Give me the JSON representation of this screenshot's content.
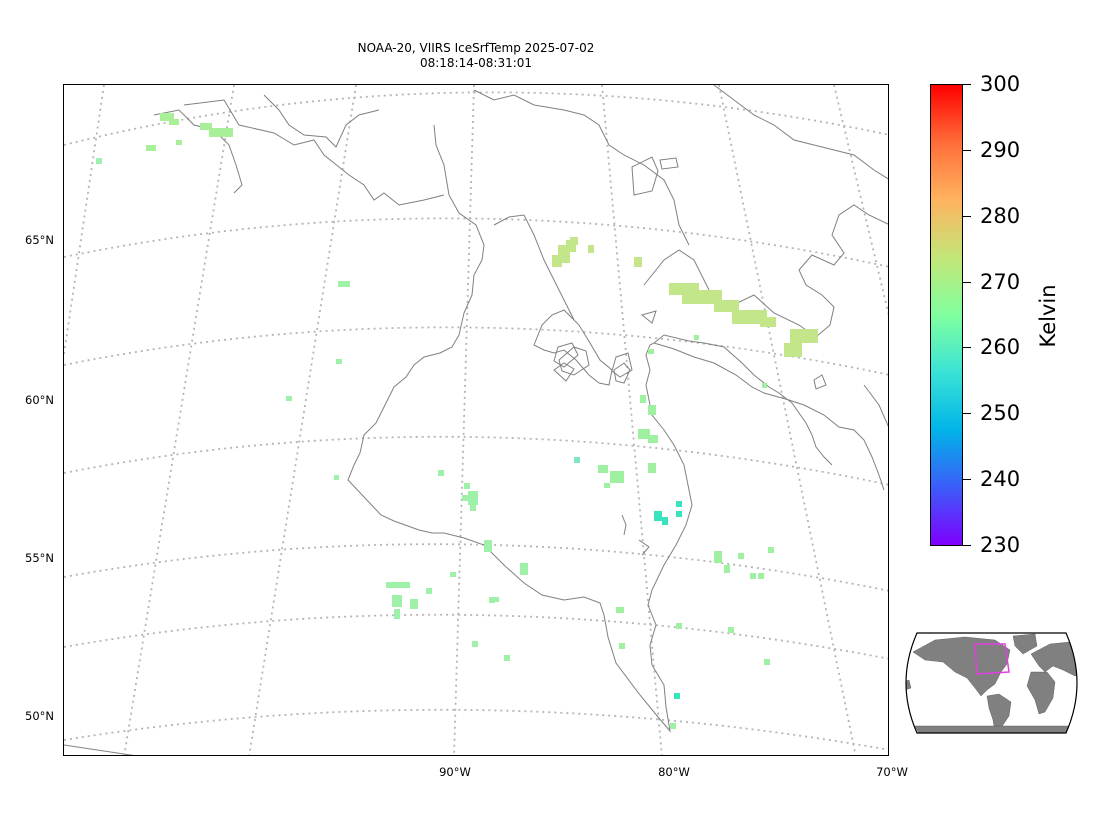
{
  "title_line1": "NOAA-20, VIIRS IceSrfTemp 2025-07-02",
  "title_line2": "08:18:14-08:31:01",
  "lat_labels": [
    "65°N",
    "60°N",
    "55°N",
    "50°N"
  ],
  "lon_labels": [
    "90°W",
    "80°W",
    "70°W"
  ],
  "colorbar": {
    "label": "Kelvin",
    "ticks": [
      "300",
      "290",
      "280",
      "270",
      "260",
      "250",
      "240",
      "230"
    ],
    "min": 230,
    "max": 300,
    "colormap": [
      "#7f00ff",
      "#3c5cf9",
      "#00b4e8",
      "#3ae3d6",
      "#80ff9e",
      "#c3e678",
      "#ffb360",
      "#ff6d38",
      "#ff0000"
    ]
  },
  "colors": {
    "coastline": "#808080",
    "gridline": "#b4b4b4",
    "inset_land": "#808080",
    "inset_footprint": "#e040e0"
  },
  "observations_kelvin": {
    "hudson_strait_band": 268,
    "southampton_island": 268,
    "eastern_hudson_bay": 262,
    "james_bay_north": 264,
    "western_inland": 265
  }
}
